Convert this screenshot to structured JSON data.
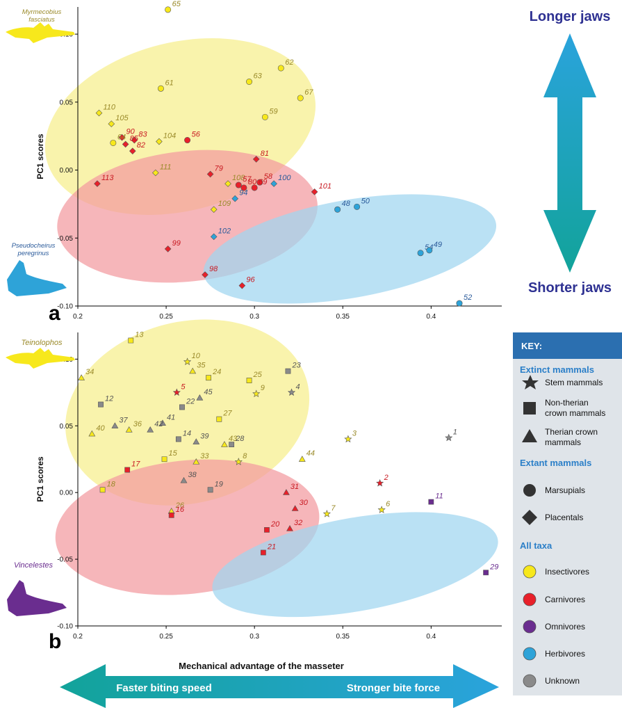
{
  "figure": {
    "xlabel": "Mechanical advantage of the masseter",
    "arrow_left_label": "Faster biting speed",
    "arrow_right_label": "Stronger bite force",
    "arrow_top_label": "Longer jaws",
    "arrow_bottom_label": "Shorter jaws"
  },
  "colors": {
    "insectivore": "#f7e81c",
    "carnivore": "#e8202a",
    "omnivore": "#6a2d8f",
    "herbivore": "#2ea3d8",
    "unknown": "#8a8a8a",
    "ellipse_insectivore": "#f7ee8c",
    "ellipse_carnivore": "#f39a9f",
    "ellipse_herbivore": "#9fd6f0",
    "label_insectivore": "#9a8a2a",
    "label_carnivore": "#c81a22",
    "label_omnivore": "#6a2d8f",
    "label_herbivore": "#2a5a9a",
    "label_unknown": "#555555",
    "arrow_teal": "#12a39a",
    "arrow_blue": "#2aa3dc",
    "key_header_bg": "#2b6fb0",
    "key_bg": "#dfe4e9",
    "key_section": "#2b7fc8",
    "title_navy": "#2e3192"
  },
  "key": {
    "header": "KEY:",
    "extinct_title": "Extinct mammals",
    "extinct_items": [
      "Stem mammals",
      "Non-therian crown mammals",
      "Therian crown mammals"
    ],
    "extant_title": "Extant mammals",
    "extant_items": [
      "Marsupials",
      "Placentals"
    ],
    "all_title": "All taxa",
    "all_items": [
      "Insectivores",
      "Carnivores",
      "Omnivores",
      "Herbivores",
      "Unknown"
    ]
  },
  "chart_data": [
    {
      "panel": "a",
      "type": "scatter",
      "xlabel": "",
      "ylabel": "PC1 scores",
      "xlim": [
        0.2,
        0.42
      ],
      "ylim": [
        -0.1,
        0.12
      ],
      "xticks": [
        0.2,
        0.25,
        0.3,
        0.35,
        0.4
      ],
      "xtick_labels": [
        "0.2",
        "0.25",
        "0.3",
        "0.35",
        "0.4"
      ],
      "yticks": [
        -0.1,
        -0.05,
        0.0,
        0.05,
        0.1
      ],
      "ytick_labels": [
        "-0.10",
        "-0.05",
        "0.00",
        "0.05",
        "0.10"
      ],
      "silhouettes": [
        {
          "name": "Myrmecobius fasciatus",
          "diet": "insectivore",
          "position": "top-left"
        },
        {
          "name": "Pseudocheirus peregrinus",
          "diet": "herbivore",
          "position": "bottom-left"
        }
      ],
      "hulls": [
        {
          "diet": "insectivore",
          "cx": 0.258,
          "cy": 0.032,
          "rx": 0.078,
          "ry": 0.062,
          "rotate": -14
        },
        {
          "diet": "carnivore",
          "cx": 0.262,
          "cy": -0.034,
          "rx": 0.074,
          "ry": 0.048,
          "rotate": -6
        },
        {
          "diet": "herbivore",
          "cx": 0.354,
          "cy": -0.058,
          "rx": 0.084,
          "ry": 0.036,
          "rotate": -10
        }
      ],
      "points": [
        {
          "id": "65",
          "x": 0.251,
          "y": 0.118,
          "shape": "circle",
          "diet": "insectivore"
        },
        {
          "id": "62",
          "x": 0.315,
          "y": 0.075,
          "shape": "circle",
          "diet": "insectivore"
        },
        {
          "id": "63",
          "x": 0.297,
          "y": 0.065,
          "shape": "circle",
          "diet": "insectivore"
        },
        {
          "id": "61",
          "x": 0.247,
          "y": 0.06,
          "shape": "circle",
          "diet": "insectivore"
        },
        {
          "id": "67",
          "x": 0.326,
          "y": 0.053,
          "shape": "circle",
          "diet": "insectivore"
        },
        {
          "id": "59",
          "x": 0.306,
          "y": 0.039,
          "shape": "circle",
          "diet": "insectivore"
        },
        {
          "id": "110",
          "x": 0.212,
          "y": 0.042,
          "shape": "diamond",
          "diet": "insectivore"
        },
        {
          "id": "105",
          "x": 0.219,
          "y": 0.034,
          "shape": "diamond",
          "diet": "insectivore"
        },
        {
          "id": "90",
          "x": 0.225,
          "y": 0.024,
          "shape": "diamond",
          "diet": "carnivore"
        },
        {
          "id": "83",
          "x": 0.232,
          "y": 0.022,
          "shape": "diamond",
          "diet": "carnivore"
        },
        {
          "id": "85",
          "x": 0.227,
          "y": 0.019,
          "shape": "diamond",
          "diet": "carnivore"
        },
        {
          "id": "64",
          "x": 0.22,
          "y": 0.02,
          "shape": "circle",
          "diet": "insectivore"
        },
        {
          "id": "82",
          "x": 0.231,
          "y": 0.014,
          "shape": "diamond",
          "diet": "carnivore"
        },
        {
          "id": "104",
          "x": 0.246,
          "y": 0.021,
          "shape": "diamond",
          "diet": "insectivore"
        },
        {
          "id": "56",
          "x": 0.262,
          "y": 0.022,
          "shape": "circle",
          "diet": "carnivore"
        },
        {
          "id": "81",
          "x": 0.301,
          "y": 0.008,
          "shape": "diamond",
          "diet": "carnivore"
        },
        {
          "id": "111",
          "x": 0.244,
          "y": -0.002,
          "shape": "diamond",
          "diet": "insectivore"
        },
        {
          "id": "79",
          "x": 0.275,
          "y": -0.003,
          "shape": "diamond",
          "diet": "carnivore"
        },
        {
          "id": "113",
          "x": 0.211,
          "y": -0.01,
          "shape": "diamond",
          "diet": "carnivore"
        },
        {
          "id": "108",
          "x": 0.285,
          "y": -0.01,
          "shape": "diamond",
          "diet": "insectivore"
        },
        {
          "id": "57",
          "x": 0.291,
          "y": -0.011,
          "shape": "circle",
          "diet": "carnivore"
        },
        {
          "id": "58",
          "x": 0.303,
          "y": -0.009,
          "shape": "circle",
          "diet": "carnivore"
        },
        {
          "id": "69",
          "x": 0.3,
          "y": -0.013,
          "shape": "circle",
          "diet": "carnivore"
        },
        {
          "id": "80",
          "x": 0.294,
          "y": -0.013,
          "shape": "circle",
          "diet": "carnivore"
        },
        {
          "id": "100",
          "x": 0.311,
          "y": -0.01,
          "shape": "diamond",
          "diet": "herbivore"
        },
        {
          "id": "101",
          "x": 0.334,
          "y": -0.016,
          "shape": "diamond",
          "diet": "carnivore"
        },
        {
          "id": "94",
          "x": 0.289,
          "y": -0.021,
          "shape": "diamond",
          "diet": "herbivore"
        },
        {
          "id": "109",
          "x": 0.277,
          "y": -0.029,
          "shape": "diamond",
          "diet": "insectivore"
        },
        {
          "id": "50",
          "x": 0.358,
          "y": -0.027,
          "shape": "circle",
          "diet": "herbivore"
        },
        {
          "id": "48",
          "x": 0.347,
          "y": -0.029,
          "shape": "circle",
          "diet": "herbivore"
        },
        {
          "id": "102",
          "x": 0.277,
          "y": -0.049,
          "shape": "diamond",
          "diet": "herbivore"
        },
        {
          "id": "99",
          "x": 0.251,
          "y": -0.058,
          "shape": "diamond",
          "diet": "carnivore"
        },
        {
          "id": "54",
          "x": 0.394,
          "y": -0.061,
          "shape": "circle",
          "diet": "herbivore"
        },
        {
          "id": "49",
          "x": 0.399,
          "y": -0.059,
          "shape": "circle",
          "diet": "herbivore"
        },
        {
          "id": "98",
          "x": 0.272,
          "y": -0.077,
          "shape": "diamond",
          "diet": "carnivore"
        },
        {
          "id": "96",
          "x": 0.293,
          "y": -0.085,
          "shape": "diamond",
          "diet": "carnivore"
        },
        {
          "id": "52",
          "x": 0.416,
          "y": -0.098,
          "shape": "circle",
          "diet": "herbivore"
        }
      ]
    },
    {
      "panel": "b",
      "type": "scatter",
      "xlabel": "Mechanical advantage of the masseter",
      "ylabel": "PC1 scores",
      "xlim": [
        0.2,
        0.44
      ],
      "ylim": [
        -0.1,
        0.12
      ],
      "xticks": [
        0.2,
        0.25,
        0.3,
        0.35,
        0.4
      ],
      "xtick_labels": [
        "0.2",
        "0.25",
        "0.3",
        "0.35",
        "0.4"
      ],
      "yticks": [
        -0.1,
        -0.05,
        0.0,
        0.05,
        0.1
      ],
      "ytick_labels": [
        "-0.10",
        "-0.05",
        "0.00",
        "0.05",
        "0.10"
      ],
      "silhouettes": [
        {
          "name": "Teinolophos",
          "diet": "insectivore",
          "position": "top-left"
        },
        {
          "name": "Vincelestes",
          "diet": "omnivore",
          "position": "bottom-left"
        }
      ],
      "hulls": [
        {
          "diet": "insectivore",
          "cx": 0.262,
          "cy": 0.06,
          "rx": 0.07,
          "ry": 0.068,
          "rotate": -14
        },
        {
          "diet": "carnivore",
          "cx": 0.262,
          "cy": -0.026,
          "rx": 0.075,
          "ry": 0.05,
          "rotate": -6
        },
        {
          "diet": "herbivore",
          "cx": 0.357,
          "cy": -0.054,
          "rx": 0.082,
          "ry": 0.035,
          "rotate": -10
        }
      ],
      "points": [
        {
          "id": "13",
          "x": 0.23,
          "y": 0.114,
          "shape": "square",
          "diet": "insectivore"
        },
        {
          "id": "10",
          "x": 0.262,
          "y": 0.098,
          "shape": "star",
          "diet": "insectivore"
        },
        {
          "id": "35",
          "x": 0.265,
          "y": 0.091,
          "shape": "triangle",
          "diet": "insectivore"
        },
        {
          "id": "23",
          "x": 0.319,
          "y": 0.091,
          "shape": "square",
          "diet": "unknown"
        },
        {
          "id": "34",
          "x": 0.202,
          "y": 0.086,
          "shape": "triangle",
          "diet": "insectivore"
        },
        {
          "id": "24",
          "x": 0.274,
          "y": 0.086,
          "shape": "square",
          "diet": "insectivore"
        },
        {
          "id": "25",
          "x": 0.297,
          "y": 0.084,
          "shape": "square",
          "diet": "insectivore"
        },
        {
          "id": "5",
          "x": 0.256,
          "y": 0.075,
          "shape": "star",
          "diet": "carnivore"
        },
        {
          "id": "45",
          "x": 0.269,
          "y": 0.071,
          "shape": "triangle",
          "diet": "unknown"
        },
        {
          "id": "9",
          "x": 0.301,
          "y": 0.074,
          "shape": "star",
          "diet": "insectivore"
        },
        {
          "id": "4",
          "x": 0.321,
          "y": 0.075,
          "shape": "star",
          "diet": "unknown"
        },
        {
          "id": "12",
          "x": 0.213,
          "y": 0.066,
          "shape": "square",
          "diet": "unknown"
        },
        {
          "id": "22",
          "x": 0.259,
          "y": 0.064,
          "shape": "square",
          "diet": "unknown"
        },
        {
          "id": "27",
          "x": 0.28,
          "y": 0.055,
          "shape": "square",
          "diet": "insectivore"
        },
        {
          "id": "41",
          "x": 0.248,
          "y": 0.052,
          "shape": "triangle",
          "diet": "unknown"
        },
        {
          "id": "37",
          "x": 0.221,
          "y": 0.05,
          "shape": "triangle",
          "diet": "unknown"
        },
        {
          "id": "36",
          "x": 0.229,
          "y": 0.047,
          "shape": "triangle",
          "diet": "insectivore"
        },
        {
          "id": "42",
          "x": 0.241,
          "y": 0.047,
          "shape": "triangle",
          "diet": "unknown"
        },
        {
          "id": "40",
          "x": 0.208,
          "y": 0.044,
          "shape": "triangle",
          "diet": "insectivore"
        },
        {
          "id": "14",
          "x": 0.257,
          "y": 0.04,
          "shape": "square",
          "diet": "unknown"
        },
        {
          "id": "39",
          "x": 0.267,
          "y": 0.038,
          "shape": "triangle",
          "diet": "unknown"
        },
        {
          "id": "43",
          "x": 0.283,
          "y": 0.036,
          "shape": "triangle",
          "diet": "insectivore"
        },
        {
          "id": "28",
          "x": 0.287,
          "y": 0.036,
          "shape": "square",
          "diet": "unknown"
        },
        {
          "id": "3",
          "x": 0.353,
          "y": 0.04,
          "shape": "star",
          "diet": "insectivore"
        },
        {
          "id": "1",
          "x": 0.41,
          "y": 0.041,
          "shape": "star",
          "diet": "unknown"
        },
        {
          "id": "15",
          "x": 0.249,
          "y": 0.025,
          "shape": "square",
          "diet": "insectivore"
        },
        {
          "id": "33",
          "x": 0.267,
          "y": 0.023,
          "shape": "triangle",
          "diet": "insectivore"
        },
        {
          "id": "8",
          "x": 0.291,
          "y": 0.023,
          "shape": "star",
          "diet": "insectivore"
        },
        {
          "id": "44",
          "x": 0.327,
          "y": 0.025,
          "shape": "triangle",
          "diet": "insectivore"
        },
        {
          "id": "17",
          "x": 0.228,
          "y": 0.017,
          "shape": "square",
          "diet": "carnivore"
        },
        {
          "id": "38",
          "x": 0.26,
          "y": 0.009,
          "shape": "triangle",
          "diet": "unknown"
        },
        {
          "id": "2",
          "x": 0.371,
          "y": 0.007,
          "shape": "star",
          "diet": "carnivore"
        },
        {
          "id": "18",
          "x": 0.214,
          "y": 0.002,
          "shape": "square",
          "diet": "insectivore"
        },
        {
          "id": "19",
          "x": 0.275,
          "y": 0.002,
          "shape": "square",
          "diet": "unknown"
        },
        {
          "id": "31",
          "x": 0.318,
          "y": 0.0,
          "shape": "triangle",
          "diet": "carnivore"
        },
        {
          "id": "11",
          "x": 0.4,
          "y": -0.007,
          "shape": "square",
          "diet": "omnivore"
        },
        {
          "id": "30",
          "x": 0.323,
          "y": -0.012,
          "shape": "triangle",
          "diet": "carnivore"
        },
        {
          "id": "6",
          "x": 0.372,
          "y": -0.013,
          "shape": "star",
          "diet": "insectivore"
        },
        {
          "id": "26",
          "x": 0.253,
          "y": -0.014,
          "shape": "triangle",
          "diet": "insectivore"
        },
        {
          "id": "7",
          "x": 0.341,
          "y": -0.016,
          "shape": "star",
          "diet": "insectivore"
        },
        {
          "id": "16",
          "x": 0.253,
          "y": -0.017,
          "shape": "square",
          "diet": "carnivore"
        },
        {
          "id": "20",
          "x": 0.307,
          "y": -0.028,
          "shape": "square",
          "diet": "carnivore"
        },
        {
          "id": "32",
          "x": 0.32,
          "y": -0.027,
          "shape": "triangle",
          "diet": "carnivore"
        },
        {
          "id": "21",
          "x": 0.305,
          "y": -0.045,
          "shape": "square",
          "diet": "carnivore"
        },
        {
          "id": "29",
          "x": 0.431,
          "y": -0.06,
          "shape": "square",
          "diet": "omnivore"
        }
      ]
    }
  ]
}
